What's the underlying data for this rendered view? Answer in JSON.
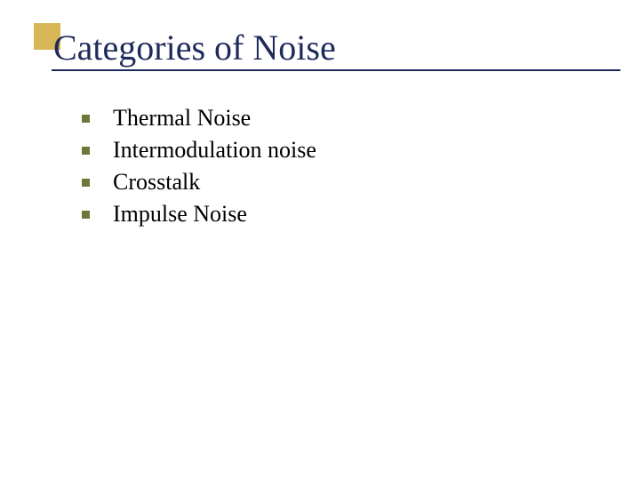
{
  "slide": {
    "title": "Categories of Noise",
    "title_color": "#1f2a5a",
    "title_fontsize": 40,
    "accent_box_color": "#d6b656",
    "underline_color": "#1f2a5a",
    "background_color": "#ffffff",
    "bullets": {
      "marker_color": "#6b7a3a",
      "text_color": "#000000",
      "text_fontsize": 26,
      "items": [
        "Thermal Noise",
        "Intermodulation noise",
        "Crosstalk",
        "Impulse Noise"
      ]
    }
  }
}
